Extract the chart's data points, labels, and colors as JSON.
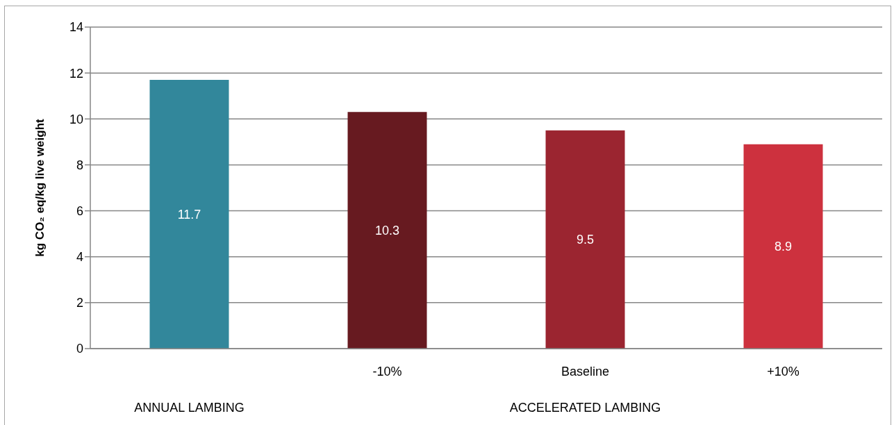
{
  "chart_data": {
    "type": "bar",
    "ylabel": "kg CO₂ eq/kg live weight",
    "categories": [
      null,
      "-10%",
      "Baseline",
      "+10%"
    ],
    "values": [
      11.7,
      10.3,
      9.5,
      8.9
    ],
    "colors": [
      "#32879b",
      "#671a20",
      "#9b2530",
      "#cd313e"
    ],
    "ylim": [
      0,
      14
    ],
    "yticks": [
      0,
      2,
      4,
      6,
      8,
      10,
      12,
      14
    ],
    "grid": "y",
    "data_labels": true,
    "annotations": [
      "ANNUAL LAMBING",
      "ACCELERATED LAMBING"
    ]
  }
}
